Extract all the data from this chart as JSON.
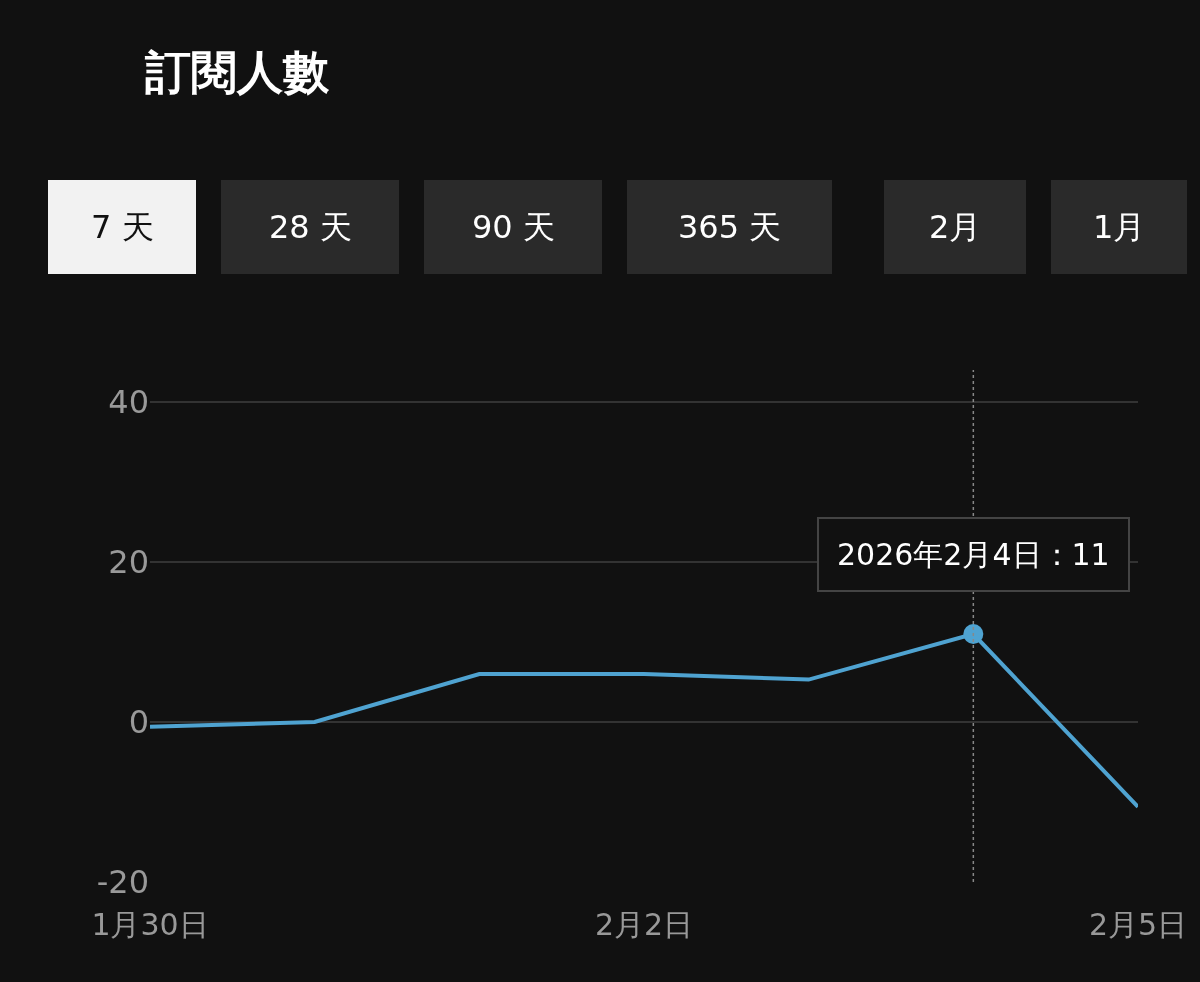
{
  "chart_data": {
    "type": "line",
    "title": "訂閱人數",
    "annotations": [
      "7 天",
      "28 天",
      "90 天",
      "365 天",
      "2月",
      "1月",
      {
        "text": "2026年2月4日：11",
        "x": "2026-02-04",
        "y": 11
      }
    ],
    "x": [
      "2026-01-30",
      "2026-01-31",
      "2026-02-01",
      "2026-02-02",
      "2026-02-03",
      "2026-02-04",
      "2026-02-05"
    ],
    "series": [
      {
        "color": "#4fa3d1",
        "values": [
          -0.6,
          0,
          6,
          6,
          5.3,
          11,
          -10.6
        ]
      }
    ],
    "xlim": [
      "2026-01-30",
      "2026-02-05"
    ],
    "xticks": [
      {
        "value": "2026-01-30",
        "label": "1月30日"
      },
      {
        "value": "2026-02-02",
        "label": "2月2日"
      },
      {
        "value": "2026-02-05",
        "label": "2月5日"
      }
    ],
    "ylim": [
      -20,
      44
    ],
    "yticks": [
      -20,
      0,
      20,
      40
    ],
    "ref_lines": [
      {
        "axis": "x",
        "value": "2026-02-04",
        "color": "#888888",
        "line_style": "dotted"
      }
    ],
    "grid": "y",
    "marker": "none",
    "line_style": "solid"
  }
}
